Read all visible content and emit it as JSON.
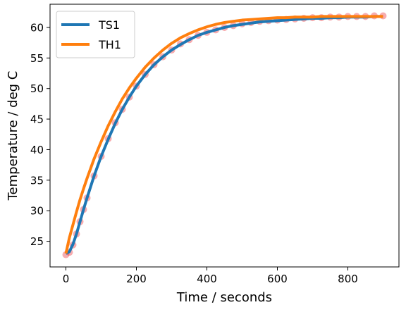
{
  "chart_data": {
    "type": "line",
    "title": "",
    "xlabel": "Time / seconds",
    "ylabel": "Temperature / deg C",
    "xlim": [
      -45,
      945
    ],
    "ylim": [
      20.8,
      63.8
    ],
    "xticks": [
      0,
      200,
      400,
      600,
      800
    ],
    "yticks": [
      25,
      30,
      35,
      40,
      45,
      50,
      55,
      60
    ],
    "grid": false,
    "legend_placement": "upper-left",
    "measured": {
      "color": "#e8121a",
      "style": "scatter markers with transparency",
      "x": [
        0,
        10,
        20,
        30,
        40,
        50,
        60,
        80,
        100,
        120,
        140,
        160,
        180,
        200,
        225,
        250,
        275,
        300,
        325,
        350,
        375,
        400,
        425,
        450,
        475,
        500,
        525,
        550,
        575,
        600,
        625,
        650,
        675,
        700,
        725,
        750,
        775,
        800,
        825,
        850,
        875,
        900
      ],
      "y": [
        22.8,
        23.2,
        24.4,
        26.2,
        28.2,
        30.2,
        32.1,
        35.7,
        38.9,
        41.8,
        44.4,
        46.6,
        48.6,
        50.4,
        52.3,
        53.9,
        55.2,
        56.3,
        57.3,
        58.0,
        58.7,
        59.2,
        59.6,
        60.0,
        60.3,
        60.6,
        60.8,
        61.0,
        61.1,
        61.2,
        61.3,
        61.4,
        61.5,
        61.6,
        61.6,
        61.7,
        61.7,
        61.8,
        61.8,
        61.8,
        61.9,
        61.9
      ]
    },
    "series": [
      {
        "name": "TS1",
        "color": "#1f77b4",
        "x": [
          0,
          10,
          20,
          30,
          40,
          50,
          60,
          80,
          100,
          120,
          140,
          160,
          180,
          200,
          225,
          250,
          275,
          300,
          325,
          350,
          375,
          400,
          425,
          450,
          475,
          500,
          525,
          550,
          575,
          600,
          625,
          650,
          675,
          700,
          725,
          750,
          775,
          800,
          825,
          850,
          875,
          900
        ],
        "y": [
          23.0,
          23.3,
          24.5,
          26.2,
          28.2,
          30.2,
          32.1,
          35.7,
          38.9,
          41.7,
          44.3,
          46.6,
          48.6,
          50.4,
          52.3,
          53.9,
          55.2,
          56.3,
          57.2,
          58.0,
          58.7,
          59.2,
          59.6,
          60.0,
          60.3,
          60.5,
          60.7,
          60.9,
          61.0,
          61.1,
          61.2,
          61.3,
          61.4,
          61.5,
          61.5,
          61.6,
          61.6,
          61.7,
          61.7,
          61.7,
          61.8,
          61.8
        ]
      },
      {
        "name": "TH1",
        "color": "#ff7f0e",
        "x": [
          0,
          10,
          20,
          30,
          40,
          50,
          60,
          80,
          100,
          120,
          140,
          160,
          180,
          200,
          225,
          250,
          275,
          300,
          325,
          350,
          375,
          400,
          425,
          450,
          475,
          500,
          525,
          550,
          575,
          600,
          625,
          650,
          675,
          700,
          725,
          750,
          775,
          800,
          825,
          850,
          875,
          900
        ],
        "y": [
          23.0,
          25.6,
          27.7,
          29.8,
          31.8,
          33.6,
          35.3,
          38.5,
          41.3,
          43.9,
          46.2,
          48.3,
          50.1,
          51.7,
          53.5,
          55.0,
          56.3,
          57.4,
          58.3,
          59.0,
          59.6,
          60.1,
          60.5,
          60.8,
          61.0,
          61.2,
          61.3,
          61.4,
          61.5,
          61.6,
          61.6,
          61.7,
          61.7,
          61.7,
          61.8,
          61.8,
          61.8,
          61.8,
          61.8,
          61.8,
          61.8,
          61.8
        ]
      }
    ]
  }
}
